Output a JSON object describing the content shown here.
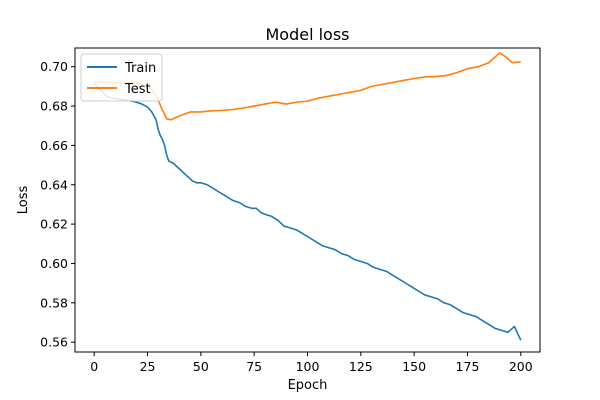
{
  "chart_data": {
    "type": "line",
    "title": "Model loss",
    "xlabel": "Epoch",
    "ylabel": "Loss",
    "xlim": [
      -9,
      209
    ],
    "ylim": [
      0.555,
      0.7095
    ],
    "xticks": [
      0,
      25,
      50,
      75,
      100,
      125,
      150,
      175,
      200
    ],
    "yticks": [
      0.56,
      0.58,
      0.6,
      0.62,
      0.64,
      0.66,
      0.68,
      0.7
    ],
    "ytick_labels": [
      "0.56",
      "0.58",
      "0.60",
      "0.62",
      "0.64",
      "0.66",
      "0.68",
      "0.70"
    ],
    "grid": false,
    "legend_position": "upper-left",
    "series": [
      {
        "name": "Train",
        "color": "#1f77b4",
        "x": [
          0,
          2,
          4,
          6,
          8,
          10,
          13,
          16,
          19,
          22,
          25,
          27,
          29,
          30,
          31,
          32,
          33,
          34,
          35,
          37,
          40,
          43,
          46,
          48,
          50,
          53,
          56,
          59,
          62,
          65,
          68,
          71,
          74,
          76,
          78,
          80,
          83,
          86,
          89,
          92,
          95,
          98,
          101,
          104,
          107,
          110,
          113,
          116,
          119,
          122,
          125,
          128,
          131,
          134,
          137,
          140,
          143,
          146,
          149,
          152,
          155,
          158,
          161,
          164,
          167,
          170,
          173,
          176,
          179,
          182,
          185,
          188,
          191,
          194,
          197,
          200
        ],
        "y": [
          0.692,
          0.689,
          0.687,
          0.685,
          0.684,
          0.6838,
          0.6833,
          0.6828,
          0.6822,
          0.6812,
          0.6795,
          0.677,
          0.673,
          0.668,
          0.665,
          0.663,
          0.66,
          0.655,
          0.652,
          0.651,
          0.648,
          0.645,
          0.642,
          0.641,
          0.641,
          0.64,
          0.638,
          0.636,
          0.634,
          0.632,
          0.631,
          0.629,
          0.628,
          0.628,
          0.626,
          0.625,
          0.624,
          0.622,
          0.619,
          0.618,
          0.617,
          0.615,
          0.613,
          0.611,
          0.609,
          0.608,
          0.607,
          0.605,
          0.604,
          0.602,
          0.601,
          0.6,
          0.598,
          0.597,
          0.596,
          0.594,
          0.592,
          0.59,
          0.588,
          0.586,
          0.584,
          0.583,
          0.582,
          0.58,
          0.579,
          0.577,
          0.575,
          0.574,
          0.573,
          0.571,
          0.569,
          0.567,
          0.566,
          0.565,
          0.568,
          0.561
        ]
      },
      {
        "name": "Test",
        "color": "#ff7f0e",
        "x": [
          0,
          5,
          10,
          15,
          20,
          25,
          28,
          30,
          32,
          34,
          36,
          38,
          40,
          45,
          50,
          55,
          60,
          65,
          70,
          75,
          80,
          85,
          90,
          95,
          100,
          105,
          110,
          115,
          120,
          125,
          130,
          135,
          140,
          145,
          150,
          155,
          160,
          165,
          170,
          175,
          180,
          185,
          188,
          190,
          193,
          196,
          200
        ],
        "y": [
          0.6925,
          0.6922,
          0.692,
          0.6919,
          0.6918,
          0.6905,
          0.687,
          0.683,
          0.678,
          0.6735,
          0.673,
          0.674,
          0.675,
          0.677,
          0.677,
          0.6776,
          0.6778,
          0.6782,
          0.679,
          0.68,
          0.681,
          0.682,
          0.681,
          0.682,
          0.6825,
          0.684,
          0.685,
          0.686,
          0.687,
          0.688,
          0.69,
          0.691,
          0.692,
          0.693,
          0.694,
          0.6948,
          0.695,
          0.6955,
          0.697,
          0.699,
          0.7,
          0.702,
          0.705,
          0.707,
          0.705,
          0.702,
          0.7025
        ]
      }
    ]
  }
}
